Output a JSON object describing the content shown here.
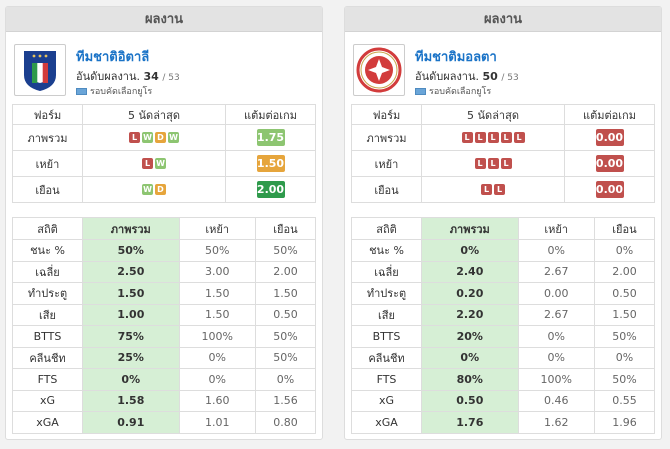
{
  "panels": [
    {
      "header": "ผลงาน",
      "team_name": "ทีมชาติอิตาลี",
      "rank_label": "อันดับผลงาน.",
      "rank": "34",
      "rank_total": "/ 53",
      "competition": "รอบคัดเลือกยูโร",
      "form_headers": [
        "ฟอร์ม",
        "5 นัดล่าสุด",
        "แต้มต่อเกม"
      ],
      "form_rows": [
        {
          "label": "ภาพรวม",
          "results": [
            "L",
            "W",
            "D",
            "W"
          ],
          "ppg": "1.75",
          "ppg_color": "#8dc571"
        },
        {
          "label": "เหย้า",
          "results": [
            "L",
            "W"
          ],
          "ppg": "1.50",
          "ppg_color": "#e6a53c"
        },
        {
          "label": "เยือน",
          "results": [
            "W",
            "D"
          ],
          "ppg": "2.00",
          "ppg_color": "#2e9a4b"
        }
      ],
      "stats_headers": [
        "สถิติ",
        "ภาพรวม",
        "เหย้า",
        "เยือน"
      ],
      "stats_rows": [
        {
          "label": "ชนะ %",
          "overall": "50%",
          "home": "50%",
          "away": "50%"
        },
        {
          "label": "เฉลี่ย",
          "overall": "2.50",
          "home": "3.00",
          "away": "2.00"
        },
        {
          "label": "ทำประตู",
          "overall": "1.50",
          "home": "1.50",
          "away": "1.50"
        },
        {
          "label": "เสีย",
          "overall": "1.00",
          "home": "1.50",
          "away": "0.50"
        },
        {
          "label": "BTTS",
          "overall": "75%",
          "home": "100%",
          "away": "50%"
        },
        {
          "label": "คลีนชีท",
          "overall": "25%",
          "home": "0%",
          "away": "50%"
        },
        {
          "label": "FTS",
          "overall": "0%",
          "home": "0%",
          "away": "0%"
        },
        {
          "label": "xG",
          "overall": "1.58",
          "home": "1.60",
          "away": "1.56"
        },
        {
          "label": "xGA",
          "overall": "0.91",
          "home": "1.01",
          "away": "0.80"
        }
      ]
    },
    {
      "header": "ผลงาน",
      "team_name": "ทีมชาติมอลตา",
      "rank_label": "อันดับผลงาน.",
      "rank": "50",
      "rank_total": "/ 53",
      "competition": "รอบคัดเลือกยูโร",
      "form_headers": [
        "ฟอร์ม",
        "5 นัดล่าสุด",
        "แต้มต่อเกม"
      ],
      "form_rows": [
        {
          "label": "ภาพรวม",
          "results": [
            "L",
            "L",
            "L",
            "L",
            "L"
          ],
          "ppg": "0.00",
          "ppg_color": "#c0504d"
        },
        {
          "label": "เหย้า",
          "results": [
            "L",
            "L",
            "L"
          ],
          "ppg": "0.00",
          "ppg_color": "#c0504d"
        },
        {
          "label": "เยือน",
          "results": [
            "L",
            "L"
          ],
          "ppg": "0.00",
          "ppg_color": "#c0504d"
        }
      ],
      "stats_headers": [
        "สถิติ",
        "ภาพรวม",
        "เหย้า",
        "เยือน"
      ],
      "stats_rows": [
        {
          "label": "ชนะ %",
          "overall": "0%",
          "home": "0%",
          "away": "0%"
        },
        {
          "label": "เฉลี่ย",
          "overall": "2.40",
          "home": "2.67",
          "away": "2.00"
        },
        {
          "label": "ทำประตู",
          "overall": "0.20",
          "home": "0.00",
          "away": "0.50"
        },
        {
          "label": "เสีย",
          "overall": "2.20",
          "home": "2.67",
          "away": "1.50"
        },
        {
          "label": "BTTS",
          "overall": "20%",
          "home": "0%",
          "away": "50%"
        },
        {
          "label": "คลีนชีท",
          "overall": "0%",
          "home": "0%",
          "away": "0%"
        },
        {
          "label": "FTS",
          "overall": "80%",
          "home": "100%",
          "away": "50%"
        },
        {
          "label": "xG",
          "overall": "0.50",
          "home": "0.46",
          "away": "0.55"
        },
        {
          "label": "xGA",
          "overall": "1.76",
          "home": "1.62",
          "away": "1.96"
        }
      ]
    }
  ]
}
